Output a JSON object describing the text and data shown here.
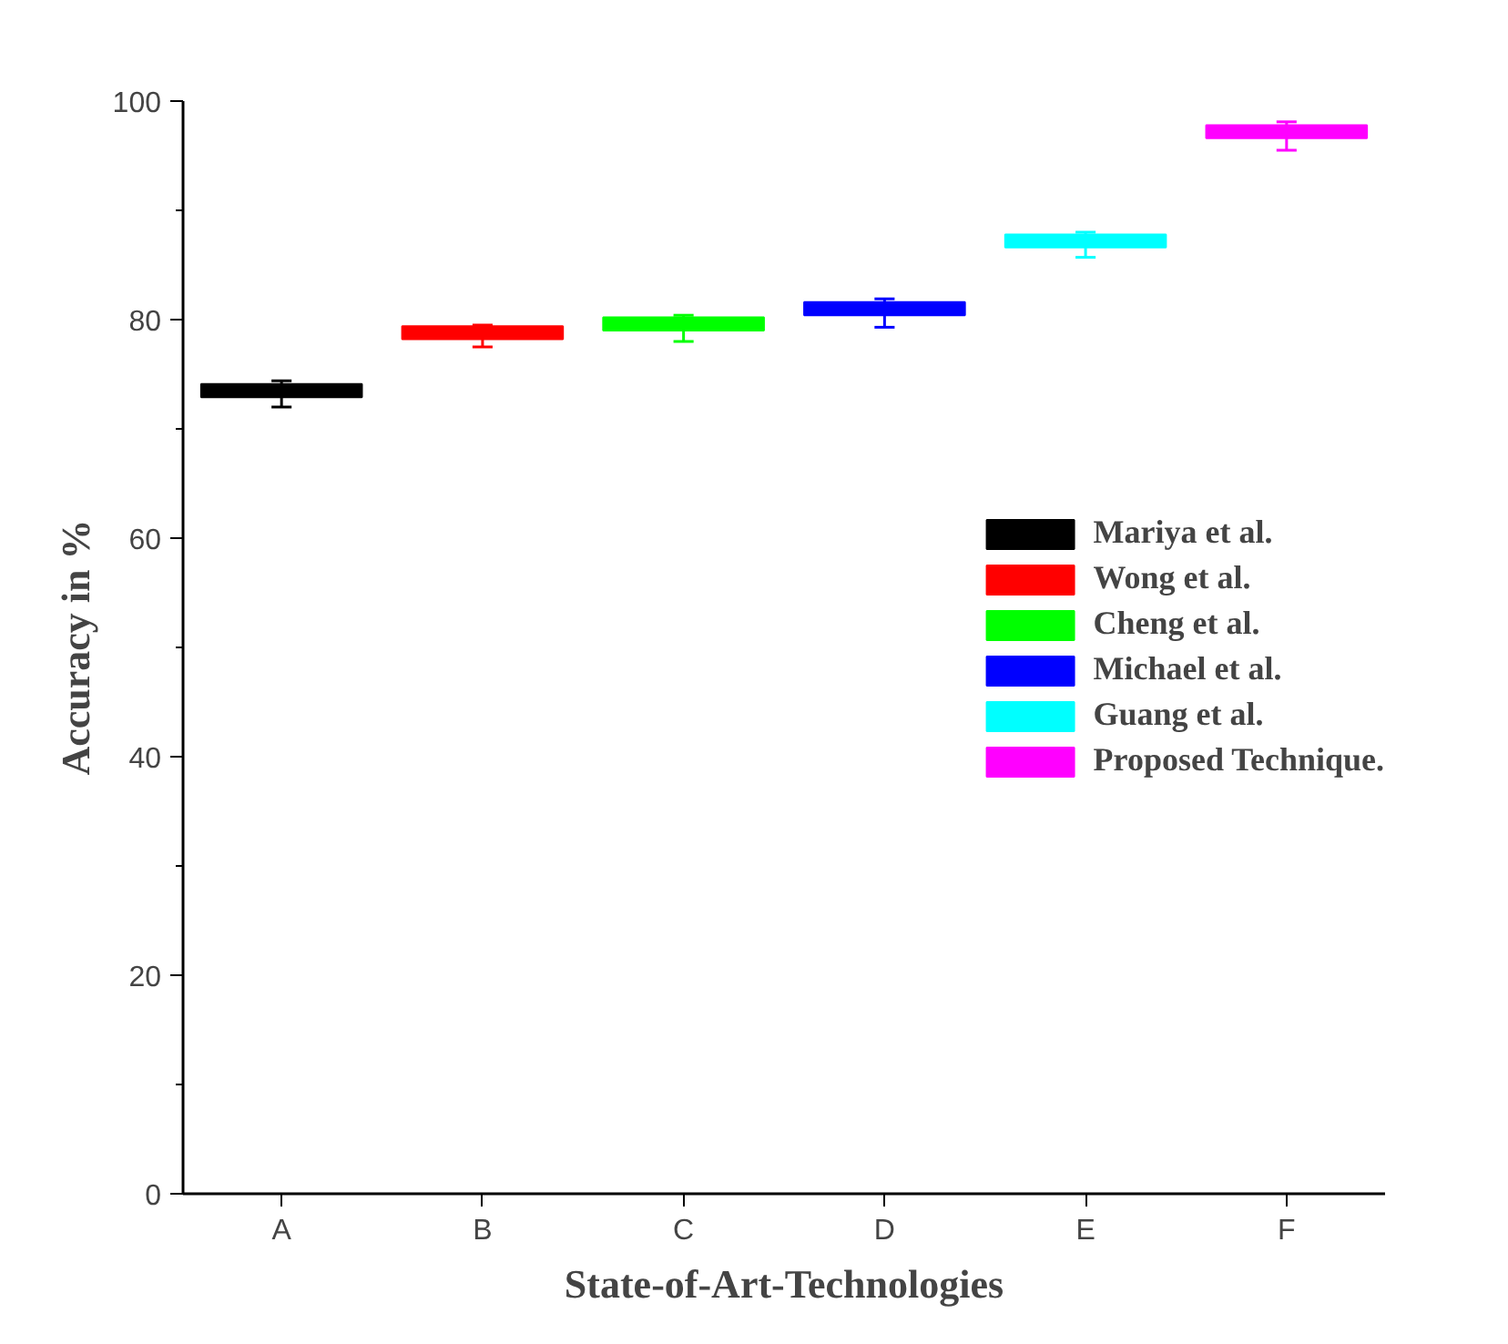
{
  "chart_data": {
    "type": "box",
    "xlabel": "State-of-Art-Technologies",
    "ylabel": "Accuracy in %",
    "categories": [
      "A",
      "B",
      "C",
      "D",
      "E",
      "F"
    ],
    "ylim": [
      0,
      100
    ],
    "yticks": [
      0,
      20,
      40,
      60,
      80,
      100
    ],
    "grid": false,
    "legend": "right",
    "series": [
      {
        "name": "Mariya et al.",
        "color": "#000000",
        "boxes": [
          {
            "low": 72.0,
            "q1": 72.9,
            "median": 73.5,
            "q3": 74.1,
            "high": 74.4
          },
          null,
          null,
          null,
          null,
          null
        ]
      },
      {
        "name": "Wong et al.",
        "color": "#ff0000",
        "boxes": [
          null,
          {
            "low": 77.5,
            "q1": 78.2,
            "median": 78.8,
            "q3": 79.4,
            "high": 79.5
          },
          null,
          null,
          null,
          null
        ]
      },
      {
        "name": "Cheng et al.",
        "color": "#00ff00",
        "boxes": [
          null,
          null,
          {
            "low": 78.0,
            "q1": 79.0,
            "median": 79.6,
            "q3": 80.2,
            "high": 80.4
          },
          null,
          null,
          null
        ]
      },
      {
        "name": "Michael et al.",
        "color": "#0000ff",
        "boxes": [
          null,
          null,
          null,
          {
            "low": 79.3,
            "q1": 80.4,
            "median": 81.0,
            "q3": 81.6,
            "high": 81.9
          },
          null,
          null
        ]
      },
      {
        "name": "Guang et al.",
        "color": "#00ffff",
        "boxes": [
          null,
          null,
          null,
          null,
          {
            "low": 85.7,
            "q1": 86.6,
            "median": 87.2,
            "q3": 87.8,
            "high": 88.0
          },
          null
        ]
      },
      {
        "name": "Proposed Technique.",
        "color": "#ff00ff",
        "boxes": [
          null,
          null,
          null,
          null,
          null,
          {
            "low": 95.5,
            "q1": 96.6,
            "median": 97.2,
            "q3": 97.8,
            "high": 98.1
          }
        ]
      }
    ]
  }
}
